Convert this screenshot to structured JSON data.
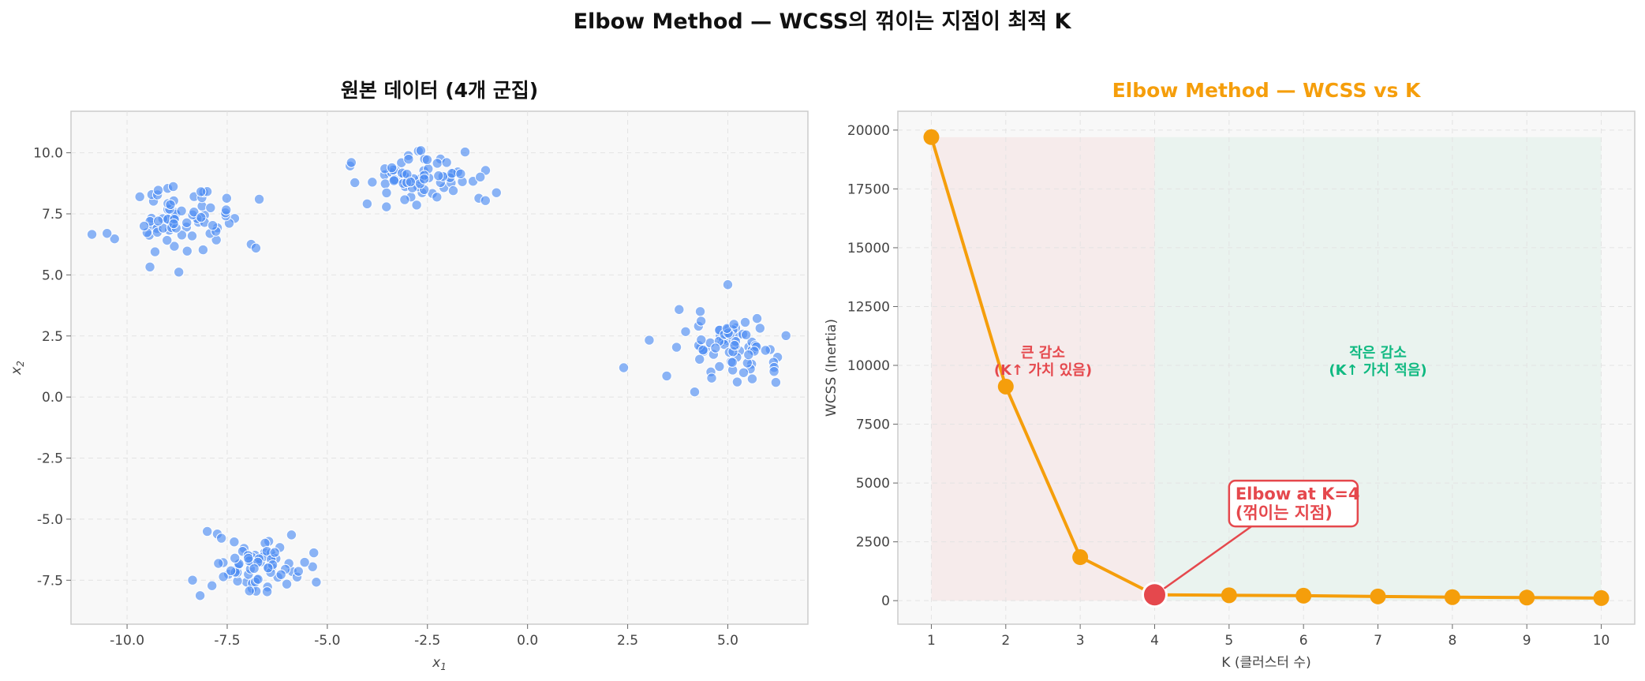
{
  "suptitle": "Elbow Method — WCSS의 꺾이는 지점이 최적 K",
  "colors": {
    "scatter": "#4e8ef2",
    "wcss_line": "#f59e0b",
    "elbow": "#e5484d",
    "small_drop": "#10b981",
    "region_red": "#f4dcdc",
    "region_green": "#d9eee5"
  },
  "chart_data": [
    {
      "type": "scatter",
      "title": "원본 데이터 (4개 군집)",
      "xlabel": "x1",
      "ylabel": "x2",
      "xlim": [
        -11.4,
        7.0
      ],
      "ylim": [
        -9.3,
        11.7
      ],
      "xticks": [
        -10.0,
        -7.5,
        -5.0,
        -2.5,
        0.0,
        2.5,
        5.0
      ],
      "yticks": [
        -7.5,
        -5.0,
        -2.5,
        0.0,
        2.5,
        5.0,
        7.5,
        10.0
      ],
      "xtick_labels": [
        "-10.0",
        "-7.5",
        "-5.0",
        "-2.5",
        "0.0",
        "2.5",
        "5.0"
      ],
      "ytick_labels": [
        "-7.5",
        "-5.0",
        "-2.5",
        "0.0",
        "2.5",
        "5.0",
        "7.5",
        "10.0"
      ],
      "grid": true,
      "clusters": [
        {
          "center": [
            -8.6,
            7.1
          ],
          "spread": [
            0.75,
            0.7
          ],
          "count": 75
        },
        {
          "center": [
            -2.6,
            8.9
          ],
          "spread": [
            0.85,
            0.6
          ],
          "count": 75
        },
        {
          "center": [
            4.9,
            2.0
          ],
          "spread": [
            0.7,
            0.6
          ],
          "count": 75
        },
        {
          "center": [
            -6.8,
            -6.8
          ],
          "spread": [
            0.65,
            0.6
          ],
          "count": 75
        }
      ],
      "outliers": [
        [
          -10.5,
          6.7
        ],
        [
          -6.7,
          8.1
        ],
        [
          -4.4,
          9.6
        ],
        [
          2.4,
          1.2
        ],
        [
          5.0,
          4.6
        ],
        [
          6.2,
          0.6
        ]
      ]
    },
    {
      "type": "line",
      "title": "Elbow Method — WCSS vs K",
      "xlabel": "K (클러스터 수)",
      "ylabel": "WCSS (Inertia)",
      "xlim": [
        0.55,
        10.45
      ],
      "ylim": [
        -1000,
        20800
      ],
      "xticks": [
        1,
        2,
        3,
        4,
        5,
        6,
        7,
        8,
        9,
        10
      ],
      "yticks": [
        0,
        2500,
        5000,
        7500,
        10000,
        12500,
        15000,
        17500,
        20000
      ],
      "grid": true,
      "x": [
        1,
        2,
        3,
        4,
        5,
        6,
        7,
        8,
        9,
        10
      ],
      "y": [
        19700,
        9100,
        1850,
        250,
        230,
        210,
        180,
        150,
        130,
        110
      ],
      "elbow_k": 4,
      "annotations": {
        "left_region": [
          "큰 감소",
          "(K↑ 가치 있음)"
        ],
        "right_region": [
          "작은 감소",
          "(K↑ 가치 적음)"
        ],
        "elbow_box": [
          "Elbow at K=4",
          "(꺾이는 지점)"
        ]
      }
    }
  ]
}
